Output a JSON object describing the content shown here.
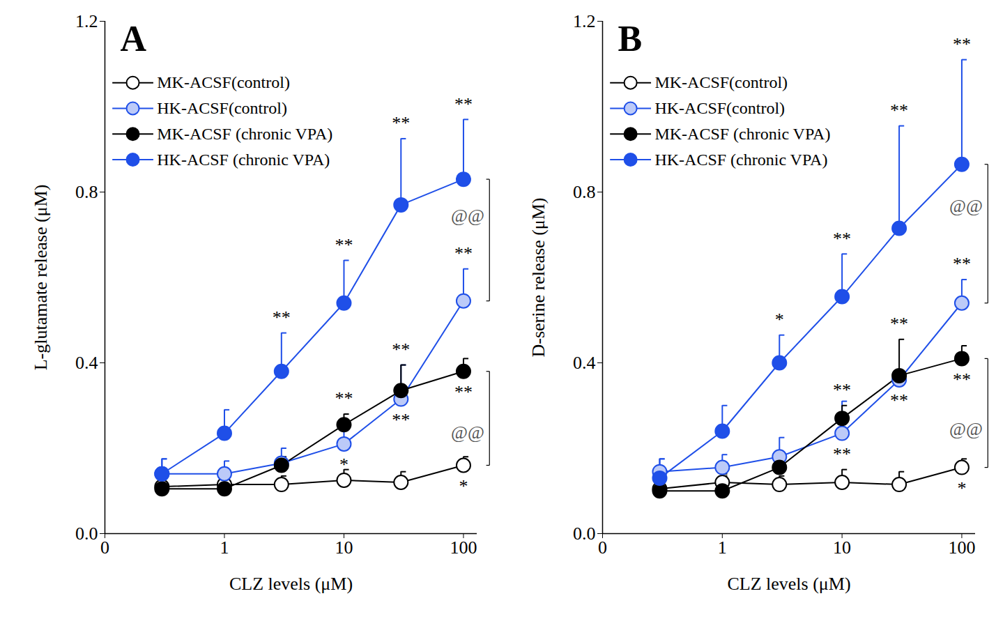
{
  "chart_data": [
    {
      "type": "line",
      "title": "A",
      "x_label": "CLZ levels (μM)",
      "y_label": "L-glutamate release (μM)",
      "log": "x",
      "grid": false,
      "legend": "top-left",
      "x": [
        0.3,
        1,
        3,
        10,
        30,
        100
      ],
      "xlim": [
        0.1,
        130
      ],
      "xticks": [
        {
          "value": 0.1,
          "label": "0"
        },
        1,
        10,
        100
      ],
      "ylim": [
        0,
        1.2
      ],
      "yticks": [
        {
          "value": 0,
          "label": "0.0"
        },
        0.4,
        0.8,
        1.2
      ],
      "series": [
        {
          "name": "MK-ACSF(control)",
          "color": "#000000",
          "marker": "open",
          "values": [
            0.11,
            0.115,
            0.115,
            0.125,
            0.12,
            0.16
          ],
          "errors": [
            0.02,
            0.02,
            0.02,
            0.025,
            0.025,
            0.02
          ],
          "significance_above": [
            null,
            null,
            null,
            null,
            null,
            null
          ],
          "significance_below": [
            null,
            null,
            null,
            null,
            null,
            "*"
          ]
        },
        {
          "name": "HK-ACSF(control)",
          "color": "#1f4fe8",
          "marker": "tinted",
          "values": [
            0.14,
            0.14,
            0.165,
            0.21,
            0.315,
            0.545
          ],
          "errors": [
            0.035,
            0.03,
            0.035,
            0.035,
            0.08,
            0.075
          ],
          "significance_above": [
            null,
            null,
            null,
            null,
            null,
            "**"
          ],
          "significance_below": [
            null,
            null,
            null,
            "*",
            "**",
            null
          ]
        },
        {
          "name": "MK-ACSF (chronic VPA)",
          "color": "#000000",
          "marker": "filled",
          "values": [
            0.105,
            0.105,
            0.16,
            0.255,
            0.335,
            0.38
          ],
          "errors": [
            0.03,
            0.035,
            0.02,
            0.025,
            0.06,
            0.03
          ],
          "significance_above": [
            null,
            null,
            null,
            "**",
            "**",
            null
          ],
          "significance_below": [
            null,
            null,
            null,
            null,
            null,
            "**"
          ]
        },
        {
          "name": "HK-ACSF (chronic VPA)",
          "color": "#1f4fe8",
          "marker": "filled",
          "values": [
            0.14,
            0.235,
            0.38,
            0.54,
            0.77,
            0.83
          ],
          "errors": [
            0.035,
            0.055,
            0.09,
            0.1,
            0.155,
            0.14
          ],
          "significance_above": [
            null,
            null,
            "**",
            "**",
            "**",
            "**"
          ],
          "significance_below": [
            null,
            null,
            null,
            null,
            null,
            null
          ]
        }
      ],
      "comparisons": [
        {
          "x": 100,
          "between": [
            "HK-ACSF (chronic VPA)",
            "HK-ACSF(control)"
          ],
          "label": "@@"
        },
        {
          "x": 100,
          "between": [
            "MK-ACSF (chronic VPA)",
            "MK-ACSF(control)"
          ],
          "label": "@@"
        }
      ]
    },
    {
      "type": "line",
      "title": "B",
      "x_label": "CLZ levels (μM)",
      "y_label": "D-serine release (μM)",
      "log": "x",
      "grid": false,
      "legend": "top-left",
      "x": [
        0.3,
        1,
        3,
        10,
        30,
        100
      ],
      "xlim": [
        0.1,
        130
      ],
      "xticks": [
        {
          "value": 0.1,
          "label": "0"
        },
        1,
        10,
        100
      ],
      "ylim": [
        0,
        1.2
      ],
      "yticks": [
        {
          "value": 0,
          "label": "0.0"
        },
        0.4,
        0.8,
        1.2
      ],
      "series": [
        {
          "name": "MK-ACSF(control)",
          "color": "#000000",
          "marker": "open",
          "values": [
            0.105,
            0.12,
            0.115,
            0.12,
            0.115,
            0.155
          ],
          "errors": [
            0.02,
            0.02,
            0.02,
            0.03,
            0.03,
            0.02
          ],
          "significance_above": [
            null,
            null,
            null,
            null,
            null,
            null
          ],
          "significance_below": [
            null,
            null,
            null,
            null,
            null,
            "*"
          ]
        },
        {
          "name": "HK-ACSF(control)",
          "color": "#1f4fe8",
          "marker": "tinted",
          "values": [
            0.145,
            0.155,
            0.18,
            0.235,
            0.36,
            0.54
          ],
          "errors": [
            0.03,
            0.03,
            0.045,
            0.075,
            0.02,
            0.055
          ],
          "significance_above": [
            null,
            null,
            null,
            null,
            null,
            "**"
          ],
          "significance_below": [
            null,
            null,
            null,
            "**",
            "**",
            null
          ]
        },
        {
          "name": "MK-ACSF (chronic VPA)",
          "color": "#000000",
          "marker": "filled",
          "values": [
            0.1,
            0.1,
            0.155,
            0.27,
            0.37,
            0.41
          ],
          "errors": [
            0.03,
            0.035,
            0.02,
            0.03,
            0.085,
            0.03
          ],
          "significance_above": [
            null,
            null,
            null,
            "**",
            "**",
            null
          ],
          "significance_below": [
            null,
            null,
            null,
            null,
            null,
            "**"
          ]
        },
        {
          "name": "HK-ACSF (chronic VPA)",
          "color": "#1f4fe8",
          "marker": "filled",
          "values": [
            0.13,
            0.24,
            0.4,
            0.555,
            0.715,
            0.865
          ],
          "errors": [
            0.045,
            0.06,
            0.065,
            0.1,
            0.24,
            0.245
          ],
          "significance_above": [
            null,
            null,
            "*",
            "**",
            "**",
            "**"
          ],
          "significance_below": [
            null,
            null,
            null,
            null,
            null,
            null
          ]
        }
      ],
      "comparisons": [
        {
          "x": 100,
          "between": [
            "HK-ACSF (chronic VPA)",
            "HK-ACSF(control)"
          ],
          "label": "@@"
        },
        {
          "x": 100,
          "between": [
            "MK-ACSF (chronic VPA)",
            "MK-ACSF(control)"
          ],
          "label": "@@"
        }
      ]
    }
  ]
}
